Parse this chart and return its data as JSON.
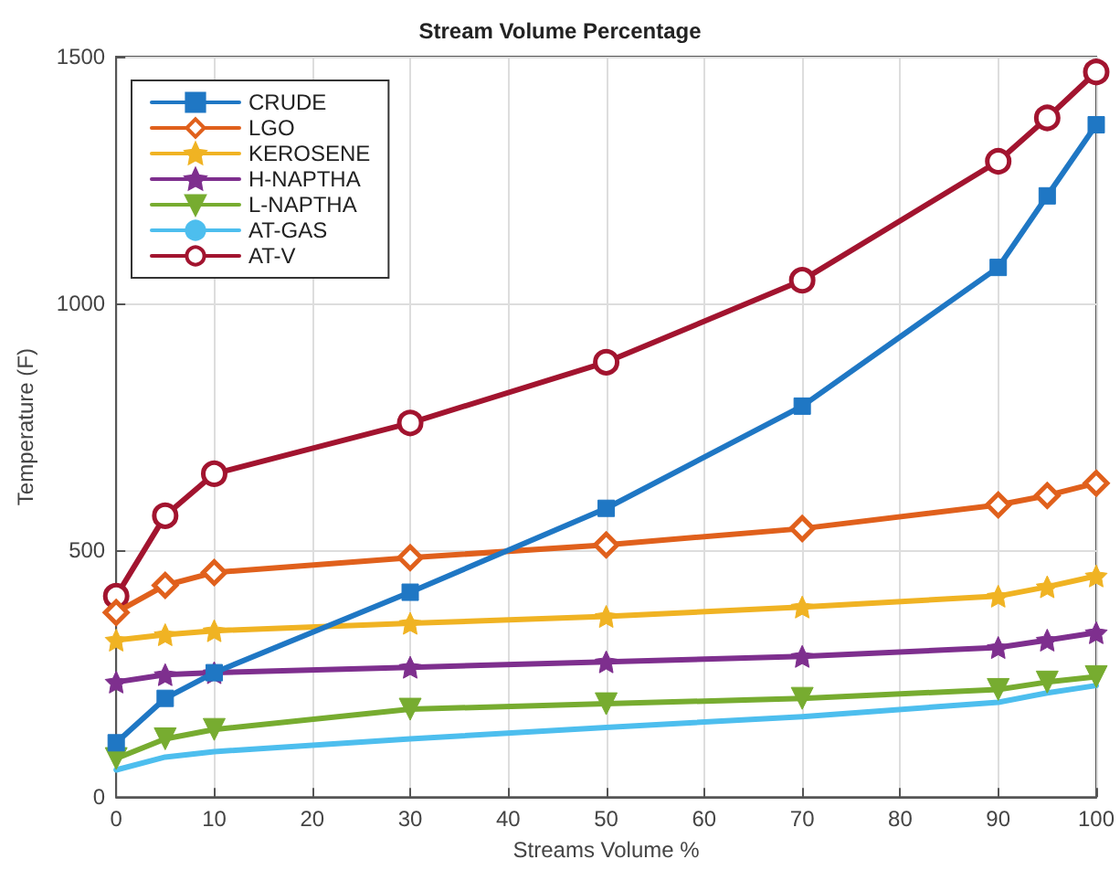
{
  "chart_data": {
    "type": "line",
    "title": "Stream Volume Percentage",
    "xlabel": "Streams Volume %",
    "ylabel": "Temperature (F)",
    "x": [
      0,
      5,
      10,
      30,
      50,
      70,
      90,
      95,
      100
    ],
    "series": [
      {
        "name": "CRUDE",
        "color": "#1f77c4",
        "marker": "square",
        "values": [
          110,
          200,
          252,
          415,
          585,
          792,
          1073,
          1218,
          1362
        ]
      },
      {
        "name": "LGO",
        "color": "#e0601c",
        "marker": "diamond",
        "values": [
          374,
          429,
          455,
          485,
          511,
          544,
          592,
          611,
          636
        ]
      },
      {
        "name": "KEROSENE",
        "color": "#f0b323",
        "marker": "star",
        "values": [
          318,
          329,
          337,
          352,
          366,
          385,
          407,
          426,
          448
        ]
      },
      {
        "name": "H-NAPTHA",
        "color": "#7e2f8e",
        "marker": "star",
        "values": [
          233,
          248,
          252,
          263,
          274,
          285,
          303,
          318,
          333
        ]
      },
      {
        "name": "L-NAPTHA",
        "color": "#77ac30",
        "marker": "triangle",
        "values": [
          78,
          118,
          137,
          178,
          189,
          200,
          218,
          233,
          244
        ]
      },
      {
        "name": "AT-GAS",
        "color": "#4dbeee",
        "marker": "none",
        "values": [
          55,
          81,
          92,
          118,
          141,
          163,
          192,
          211,
          226
        ]
      },
      {
        "name": "AT-V",
        "color": "#a2142f",
        "marker": "circle",
        "values": [
          407,
          570,
          655,
          758,
          881,
          1047,
          1288,
          1376,
          1469
        ]
      }
    ],
    "xlim": [
      0,
      100
    ],
    "xticks": [
      0,
      10,
      20,
      30,
      40,
      50,
      60,
      70,
      80,
      90,
      100
    ],
    "ylim": [
      0,
      1500
    ],
    "yticks": [
      0,
      500,
      1000,
      1500
    ],
    "grid": true,
    "legend": "top left"
  }
}
